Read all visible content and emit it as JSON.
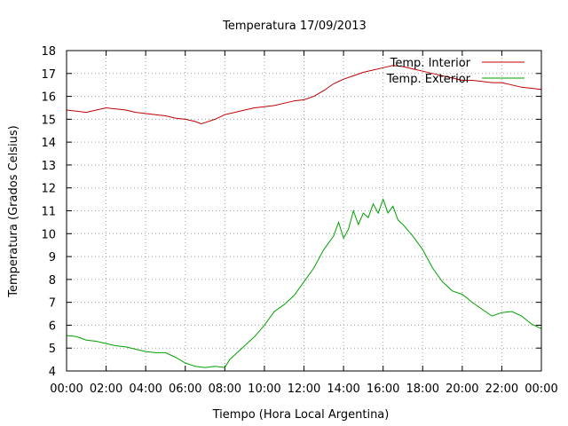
{
  "chart_data": {
    "type": "line",
    "title": "Temperatura 17/09/2013",
    "xlabel": "Tiempo (Hora Local Argentina)",
    "ylabel": "Temperatura (Grados Celsius)",
    "xlim": [
      0,
      24
    ],
    "ylim": [
      4,
      18
    ],
    "x_tick_labels": [
      "00:00",
      "02:00",
      "04:00",
      "06:00",
      "08:00",
      "10:00",
      "12:00",
      "14:00",
      "16:00",
      "18:00",
      "20:00",
      "22:00",
      "00:00"
    ],
    "y_tick_labels": [
      "4",
      "5",
      "6",
      "7",
      "8",
      "9",
      "10",
      "11",
      "12",
      "13",
      "14",
      "15",
      "16",
      "17",
      "18"
    ],
    "grid": true,
    "legend_position": "top-right",
    "series": [
      {
        "name": "Temp. Interior",
        "color": "#c00000",
        "x": [
          0,
          0.5,
          1,
          1.5,
          2,
          2.5,
          3,
          3.5,
          4,
          4.5,
          5,
          5.5,
          6,
          6.5,
          6.8,
          7,
          7.5,
          8,
          8.5,
          9,
          9.5,
          10,
          10.5,
          11,
          11.5,
          12,
          12.5,
          13,
          13.5,
          14,
          14.5,
          15,
          15.5,
          16,
          16.5,
          17,
          17.5,
          18,
          18.5,
          19,
          19.5,
          20,
          20.5,
          21,
          21.5,
          22,
          22.5,
          23,
          23.5,
          24
        ],
        "y": [
          15.4,
          15.35,
          15.3,
          15.4,
          15.5,
          15.45,
          15.4,
          15.3,
          15.25,
          15.2,
          15.15,
          15.05,
          15.0,
          14.9,
          14.8,
          14.85,
          15.0,
          15.2,
          15.3,
          15.4,
          15.5,
          15.55,
          15.6,
          15.7,
          15.8,
          15.85,
          16.0,
          16.25,
          16.55,
          16.75,
          16.9,
          17.05,
          17.15,
          17.25,
          17.35,
          17.3,
          17.2,
          17.1,
          17.0,
          16.9,
          16.8,
          16.7,
          16.7,
          16.65,
          16.6,
          16.6,
          16.5,
          16.4,
          16.35,
          16.3
        ]
      },
      {
        "name": "Temp. Exterior",
        "color": "#00a000",
        "x": [
          0,
          0.5,
          1,
          1.5,
          2,
          2.5,
          3,
          3.5,
          4,
          4.5,
          5,
          5.5,
          6,
          6.5,
          7,
          7.5,
          8,
          8.25,
          8.5,
          9,
          9.5,
          10,
          10.5,
          11,
          11.5,
          12,
          12.5,
          13,
          13.5,
          13.75,
          14,
          14.25,
          14.5,
          14.75,
          15,
          15.25,
          15.5,
          15.75,
          16,
          16.25,
          16.5,
          16.75,
          17,
          17.5,
          18,
          18.5,
          19,
          19.5,
          20,
          20.5,
          21,
          21.5,
          22,
          22.5,
          23,
          23.5,
          24
        ],
        "y": [
          5.55,
          5.5,
          5.35,
          5.3,
          5.2,
          5.1,
          5.05,
          4.95,
          4.85,
          4.8,
          4.8,
          4.6,
          4.35,
          4.2,
          4.15,
          4.2,
          4.15,
          4.5,
          4.7,
          5.1,
          5.5,
          6.0,
          6.6,
          6.9,
          7.3,
          7.9,
          8.5,
          9.3,
          9.9,
          10.5,
          9.8,
          10.2,
          11.0,
          10.4,
          10.9,
          10.7,
          11.3,
          10.9,
          11.5,
          10.9,
          11.2,
          10.6,
          10.4,
          9.9,
          9.3,
          8.5,
          7.9,
          7.5,
          7.35,
          7.0,
          6.7,
          6.4,
          6.55,
          6.6,
          6.4,
          6.05,
          5.85
        ]
      }
    ]
  }
}
